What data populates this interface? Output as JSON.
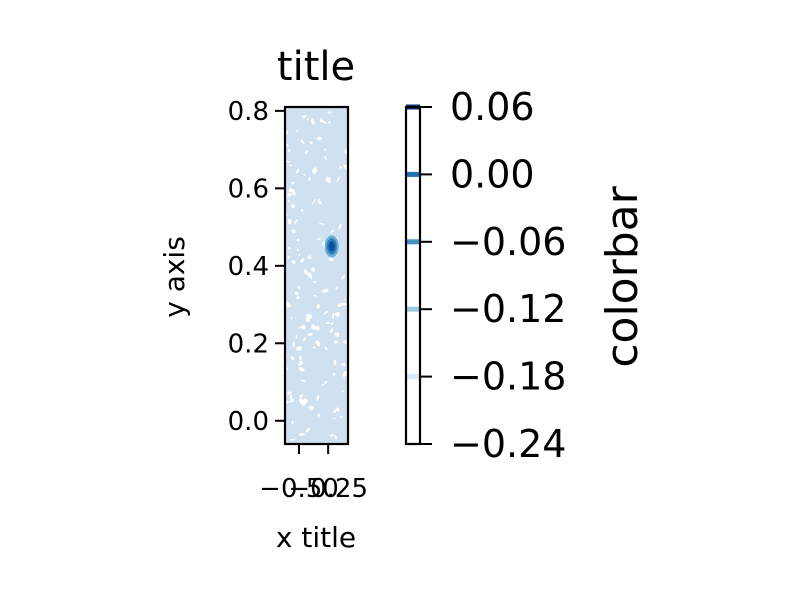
{
  "chart_data": {
    "type": "contour",
    "title": "title",
    "xlabel": "x title",
    "ylabel": "y axis",
    "xlim": [
      -0.62,
      -0.08
    ],
    "ylim": [
      -0.06,
      0.81
    ],
    "xticks": [
      {
        "value": -0.5,
        "label": "−0.50"
      },
      {
        "value": -0.25,
        "label": "−0.25"
      }
    ],
    "yticks": [
      {
        "value": 0.0,
        "label": "0.0"
      },
      {
        "value": 0.2,
        "label": "0.2"
      },
      {
        "value": 0.4,
        "label": "0.4"
      },
      {
        "value": 0.6,
        "label": "0.6"
      },
      {
        "value": 0.8,
        "label": "0.8"
      }
    ],
    "hotspot": {
      "x": -0.22,
      "y": 0.45
    },
    "fill_color": "#cfe0f1",
    "hotspot_colors": [
      "#6aaed6",
      "#2c7bb6",
      "#08519c"
    ],
    "colorbar": {
      "label": "colorbar",
      "range": [
        -0.24,
        0.06
      ],
      "levels": [
        {
          "value": 0.06,
          "label": "0.06",
          "color": "#08306b"
        },
        {
          "value": 0.0,
          "label": "0.00",
          "color": "#2171b5"
        },
        {
          "value": -0.06,
          "label": "−0.06",
          "color": "#4292c6"
        },
        {
          "value": -0.12,
          "label": "−0.12",
          "color": "#9ecae1"
        },
        {
          "value": -0.18,
          "label": "−0.18",
          "color": "#deebf7"
        },
        {
          "value": -0.24,
          "label": "−0.24",
          "color": "#f7fbff"
        }
      ]
    }
  }
}
